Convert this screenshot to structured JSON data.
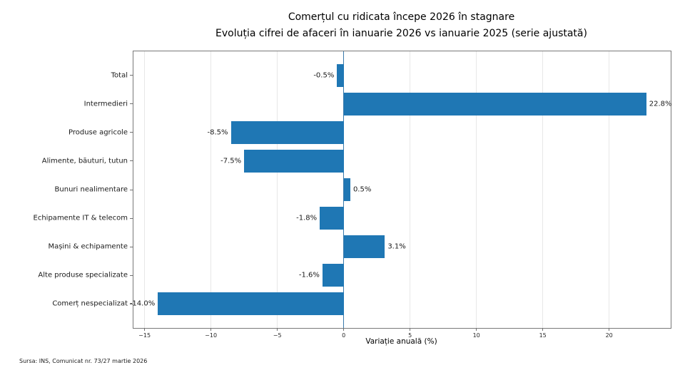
{
  "chart_data": {
    "type": "bar",
    "orientation": "horizontal",
    "title": "Comerțul cu ridicata începe 2026 în stagnare",
    "subtitle": "Evoluția cifrei de afaceri în ianuarie 2026 vs ianuarie 2025 (serie ajustată)",
    "categories": [
      "Total",
      "Intermedieri",
      "Produse agricole",
      "Alimente, băuturi, tutun",
      "Bunuri nealimentare",
      "Echipamente IT & telecom",
      "Mașini & echipamente",
      "Alte produse specializate",
      "Comerț nespecializat"
    ],
    "values": [
      -0.5,
      22.8,
      -8.5,
      -7.5,
      0.5,
      -1.8,
      3.1,
      -1.6,
      -14.0
    ],
    "value_labels": [
      "-0.5%",
      "22.8%",
      "-8.5%",
      "-7.5%",
      "0.5%",
      "-1.8%",
      "3.1%",
      "-1.6%",
      "-14.0%"
    ],
    "xlabel": "Variație anuală (%)",
    "xlim": [
      -15.84,
      24.64
    ],
    "ylim": [
      -0.84,
      8.84
    ],
    "bar_rel_height": 0.8,
    "x_ticks": [
      -15,
      -10,
      -5,
      0,
      5,
      10,
      15,
      20
    ],
    "x_tick_labels": [
      "−15",
      "−10",
      "−5",
      "0",
      "5",
      "10",
      "15",
      "20"
    ],
    "grid": true,
    "legend": false,
    "bar_color": "#1f77b4",
    "zero_line_color": "#3a79ab"
  },
  "source_note": "Sursa: INS, Comunicat nr. 73/27 martie 2026"
}
